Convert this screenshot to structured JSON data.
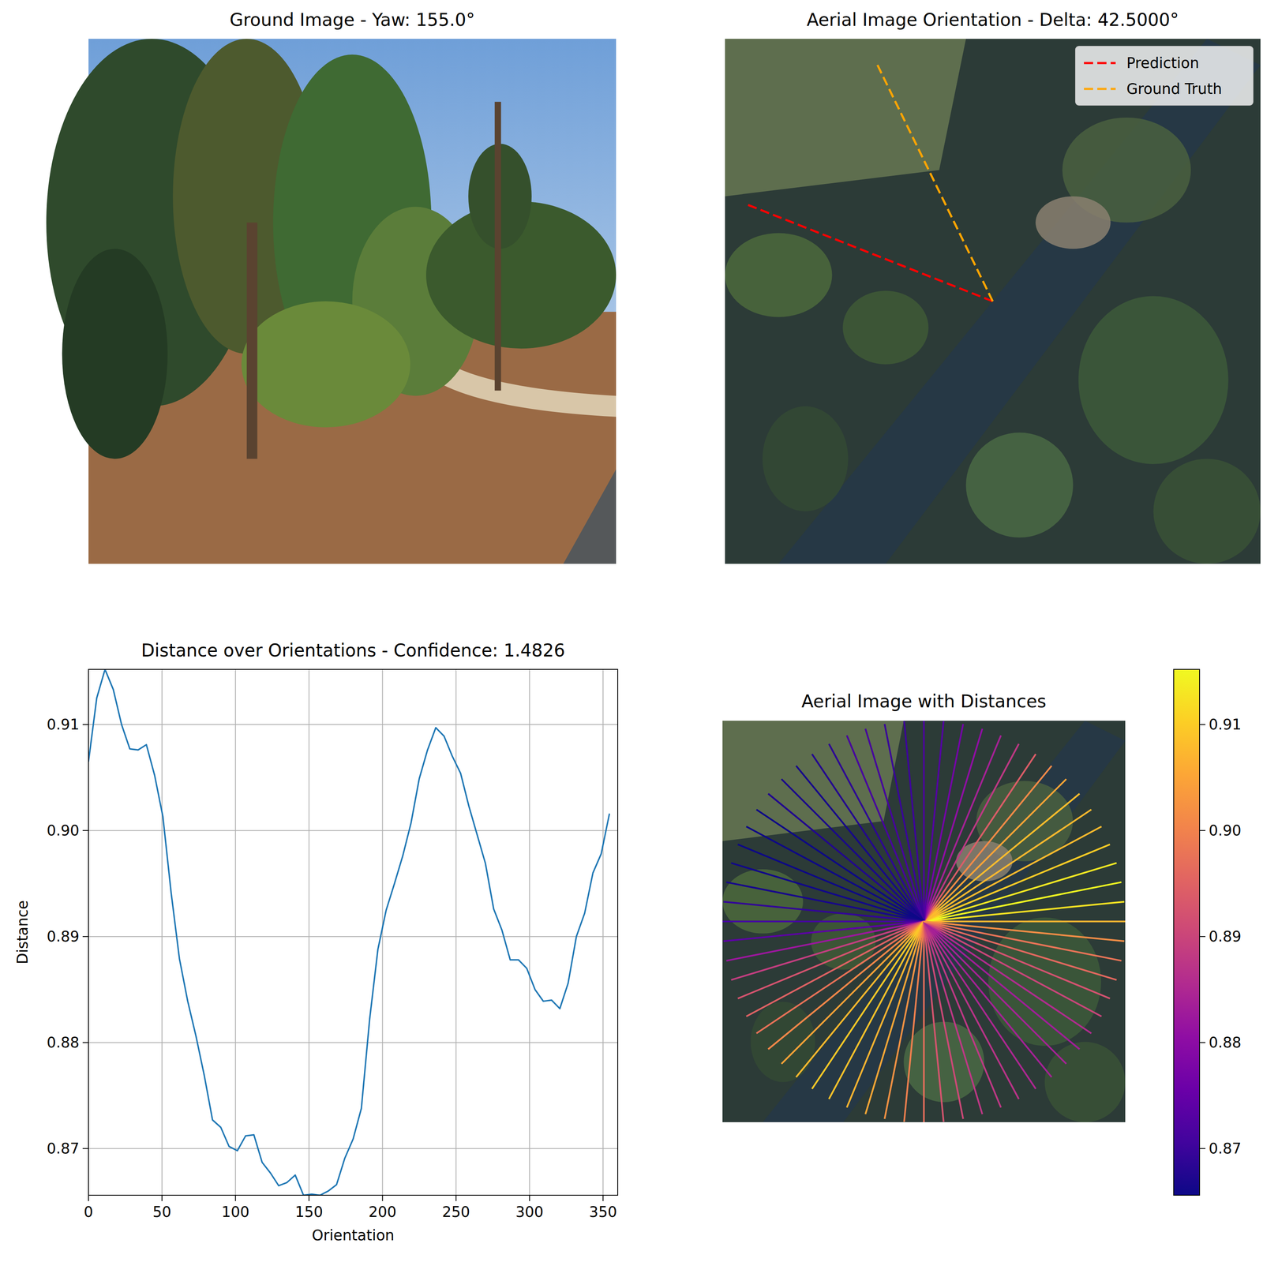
{
  "chart_data": [
    {
      "type": "image",
      "title": "Ground Image - Yaw: 155.0°"
    },
    {
      "type": "orientation",
      "title": "Aerial Image Orientation - Delta: 42.5000°",
      "series": [
        {
          "name": "Prediction",
          "color": "#ff0000",
          "angle": 291.5,
          "line_style": "dashed"
        },
        {
          "name": "Ground Truth",
          "color": "#ffa500",
          "angle": 334,
          "line_style": "dashed"
        }
      ],
      "legend": "upper right"
    },
    {
      "type": "line",
      "title": "Distance over Orientations - Confidence: 1.4826",
      "x_label": "Orientation",
      "y_label": "Distance",
      "color": "#1f77b4",
      "x": [
        0,
        5.625,
        11.25,
        16.875,
        22.5,
        28.125,
        33.75,
        39.375,
        45,
        50.625,
        56.25,
        61.875,
        67.5,
        73.125,
        78.75,
        84.375,
        90,
        95.625,
        101.25,
        106.875,
        112.5,
        118.125,
        123.75,
        129.375,
        135,
        140.625,
        146.25,
        151.875,
        157.5,
        163.125,
        168.75,
        174.375,
        180,
        185.625,
        191.25,
        196.875,
        202.5,
        208.125,
        213.75,
        219.375,
        225,
        230.625,
        236.25,
        241.875,
        247.5,
        253.125,
        258.75,
        264.375,
        270,
        275.625,
        281.25,
        286.875,
        292.5,
        298.125,
        303.75,
        309.375,
        315,
        320.625,
        326.25,
        331.875,
        337.5,
        343.125,
        348.75,
        354.375
      ],
      "values": [
        0.9065,
        0.9125,
        0.9152,
        0.9133,
        0.91,
        0.9077,
        0.9076,
        0.9081,
        0.9052,
        0.9013,
        0.8941,
        0.8879,
        0.8839,
        0.8806,
        0.8769,
        0.8727,
        0.872,
        0.8702,
        0.8698,
        0.8712,
        0.8713,
        0.8687,
        0.8677,
        0.8665,
        0.8668,
        0.8675,
        0.8656,
        0.8657,
        0.8656,
        0.866,
        0.8666,
        0.8691,
        0.8709,
        0.8738,
        0.8822,
        0.8888,
        0.8925,
        0.895,
        0.8976,
        0.9007,
        0.9049,
        0.9076,
        0.9097,
        0.9089,
        0.907,
        0.9054,
        0.9023,
        0.8996,
        0.8969,
        0.8926,
        0.8906,
        0.8878,
        0.8878,
        0.887,
        0.885,
        0.8839,
        0.884,
        0.8832,
        0.8856,
        0.89,
        0.8922,
        0.896,
        0.8978,
        0.9016
      ],
      "xlim": [
        0,
        360
      ],
      "ylim": [
        0.8656,
        0.9152
      ],
      "xticks": [
        0,
        50,
        100,
        150,
        200,
        250,
        300,
        350
      ],
      "yticks": [
        0.87,
        0.88,
        0.89,
        {
          "value": 0.9,
          "label": "0.90"
        },
        0.91
      ],
      "grid": true
    },
    {
      "type": "radial",
      "title": "Aerial Image with Distances",
      "colorbar": {
        "range": [
          0.8656,
          0.9152
        ],
        "ticks": [
          0.87,
          0.88,
          0.89,
          {
            "value": 0.9,
            "label": "0.90"
          },
          0.91
        ]
      }
    }
  ]
}
